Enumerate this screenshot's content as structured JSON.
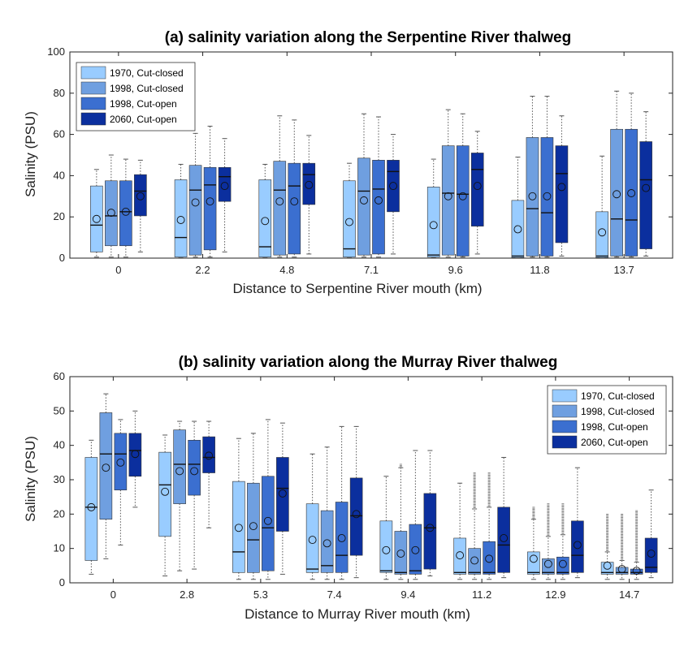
{
  "colors": {
    "1970, Cut-closed": "#99ccff",
    "1998, Cut-closed": "#6f9fe0",
    "1998, Cut-open": "#3b6fd0",
    "2060, Cut-open": "#0b2f9e"
  },
  "chart_data": [
    {
      "type": "box",
      "title": "(a) salinity variation along the Serpentine River thalweg",
      "xlabel": "Distance to Serpentine River mouth (km)",
      "ylabel": "Salinity (PSU)",
      "categories": [
        "0",
        "2.2",
        "4.8",
        "7.1",
        "9.6",
        "11.8",
        "13.7"
      ],
      "ylim": [
        0,
        100
      ],
      "yticks": [
        0,
        20,
        40,
        60,
        80,
        100
      ],
      "legend_position": "top-left",
      "series": [
        {
          "name": "1970, Cut-closed",
          "boxes": [
            {
              "min": 0.5,
              "q1": 3,
              "median": 16,
              "q3": 35,
              "max": 43,
              "mean": 19
            },
            {
              "min": 0.2,
              "q1": 0.5,
              "median": 10,
              "q3": 38,
              "max": 45.5,
              "mean": 18.5
            },
            {
              "min": 0.2,
              "q1": 0.5,
              "median": 5.5,
              "q3": 38,
              "max": 45.5,
              "mean": 18
            },
            {
              "min": 0.2,
              "q1": 0.5,
              "median": 4.5,
              "q3": 37.5,
              "max": 46,
              "mean": 17.5
            },
            {
              "min": 0.2,
              "q1": 0.5,
              "median": 1.5,
              "q3": 34.5,
              "max": 48,
              "mean": 16
            },
            {
              "min": 0.2,
              "q1": 0.3,
              "median": 1,
              "q3": 28,
              "max": 49,
              "mean": 14
            },
            {
              "min": 0.2,
              "q1": 0.3,
              "median": 1,
              "q3": 22.5,
              "max": 49.5,
              "mean": 12.5
            }
          ]
        },
        {
          "name": "1998, Cut-closed",
          "boxes": [
            {
              "min": 0.5,
              "q1": 6,
              "median": 20.5,
              "q3": 37.5,
              "max": 50,
              "mean": 22
            },
            {
              "min": 0.5,
              "q1": 1.5,
              "median": 33,
              "q3": 45,
              "max": 60.5,
              "mean": 27
            },
            {
              "min": 0.5,
              "q1": 1.5,
              "median": 33,
              "q3": 47,
              "max": 69,
              "mean": 27.5
            },
            {
              "min": 0.5,
              "q1": 1.5,
              "median": 32.5,
              "q3": 48.5,
              "max": 70,
              "mean": 28
            },
            {
              "min": 0.5,
              "q1": 1.5,
              "median": 31.5,
              "q3": 54.5,
              "max": 72,
              "mean": 30
            },
            {
              "min": 0.5,
              "q1": 1,
              "median": 24,
              "q3": 58.5,
              "max": 78.5,
              "mean": 30
            },
            {
              "min": 0.5,
              "q1": 1,
              "median": 19,
              "q3": 62.5,
              "max": 81,
              "mean": 31
            }
          ]
        },
        {
          "name": "1998, Cut-open",
          "boxes": [
            {
              "min": 0.5,
              "q1": 6,
              "median": 22.5,
              "q3": 37.5,
              "max": 48,
              "mean": 22.5
            },
            {
              "min": 0.5,
              "q1": 4,
              "median": 35.5,
              "q3": 44,
              "max": 64,
              "mean": 27.5
            },
            {
              "min": 0.5,
              "q1": 2,
              "median": 35,
              "q3": 46,
              "max": 67,
              "mean": 27.5
            },
            {
              "min": 0.5,
              "q1": 2,
              "median": 33.5,
              "q3": 47.5,
              "max": 68.5,
              "mean": 28
            },
            {
              "min": 0.5,
              "q1": 1,
              "median": 31,
              "q3": 54.5,
              "max": 70,
              "mean": 30
            },
            {
              "min": 0.5,
              "q1": 1,
              "median": 22,
              "q3": 58.5,
              "max": 78.5,
              "mean": 30
            },
            {
              "min": 0.5,
              "q1": 1,
              "median": 18.5,
              "q3": 62.5,
              "max": 80,
              "mean": 31.5
            }
          ]
        },
        {
          "name": "2060, Cut-open",
          "boxes": [
            {
              "min": 3,
              "q1": 20.5,
              "median": 32.5,
              "q3": 40.5,
              "max": 47.5,
              "mean": 30
            },
            {
              "min": 3,
              "q1": 27.5,
              "median": 39.5,
              "q3": 44,
              "max": 58,
              "mean": 35
            },
            {
              "min": 2,
              "q1": 26,
              "median": 40.5,
              "q3": 46,
              "max": 59.5,
              "mean": 35.5
            },
            {
              "min": 2,
              "q1": 22.5,
              "median": 42,
              "q3": 47.5,
              "max": 60,
              "mean": 35
            },
            {
              "min": 2,
              "q1": 15.5,
              "median": 43,
              "q3": 51,
              "max": 61.5,
              "mean": 35
            },
            {
              "min": 1,
              "q1": 7.5,
              "median": 41,
              "q3": 54.5,
              "max": 69,
              "mean": 34.5
            },
            {
              "min": 1,
              "q1": 4.5,
              "median": 38,
              "q3": 56.5,
              "max": 71,
              "mean": 34
            }
          ]
        }
      ]
    },
    {
      "type": "box",
      "title": "(b) salinity variation along the Murray River thalweg",
      "xlabel": "Distance to Murray River mouth (km)",
      "ylabel": "Salinity (PSU)",
      "categories": [
        "0",
        "2.8",
        "5.3",
        "7.4",
        "9.4",
        "11.2",
        "12.9",
        "14.7"
      ],
      "ylim": [
        0,
        60
      ],
      "yticks": [
        0,
        10,
        20,
        30,
        40,
        50,
        60
      ],
      "legend_position": "top-right",
      "series": [
        {
          "name": "1970, Cut-closed",
          "boxes": [
            {
              "min": 2.5,
              "q1": 6.5,
              "median": 22,
              "q3": 36.5,
              "max": 41.5,
              "mean": 22
            },
            {
              "min": 2,
              "q1": 13.5,
              "median": 28.5,
              "q3": 38,
              "max": 43,
              "mean": 26.5
            },
            {
              "min": 1,
              "q1": 3,
              "median": 9,
              "q3": 29.5,
              "max": 42,
              "mean": 16
            },
            {
              "min": 1,
              "q1": 3,
              "median": 4,
              "q3": 23,
              "max": 37.5,
              "mean": 12.5
            },
            {
              "min": 1,
              "q1": 3,
              "median": 3.5,
              "q3": 18,
              "max": 31,
              "mean": 9.5
            },
            {
              "min": 1,
              "q1": 2.5,
              "median": 3,
              "q3": 13,
              "max": 29,
              "mean": 8
            },
            {
              "min": 1,
              "q1": 2.5,
              "median": 3,
              "q3": 9,
              "max": 18.5,
              "mean": 7,
              "outlier_range": [
                18.5,
                22
              ]
            },
            {
              "min": 1,
              "q1": 2.5,
              "median": 3,
              "q3": 6,
              "max": 9,
              "mean": 5,
              "outlier_range": [
                9,
                20
              ]
            }
          ]
        },
        {
          "name": "1998, Cut-closed",
          "boxes": [
            {
              "min": 7,
              "q1": 18.5,
              "median": 37.5,
              "q3": 49.5,
              "max": 55,
              "mean": 33.5
            },
            {
              "min": 3.5,
              "q1": 23,
              "median": 34.5,
              "q3": 44.5,
              "max": 47,
              "mean": 32.5
            },
            {
              "min": 1,
              "q1": 3,
              "median": 12.5,
              "q3": 29,
              "max": 43.5,
              "mean": 16.5
            },
            {
              "min": 1,
              "q1": 3,
              "median": 5,
              "q3": 21,
              "max": 39.5,
              "mean": 11.5
            },
            {
              "min": 1,
              "q1": 2.5,
              "median": 3,
              "q3": 15,
              "max": 33.5,
              "mean": 8.5,
              "outlier_range": [
                33.5,
                34.5
              ]
            },
            {
              "min": 1,
              "q1": 2.5,
              "median": 3,
              "q3": 10,
              "max": 21.5,
              "mean": 6.5,
              "outlier_range": [
                21.5,
                32
              ]
            },
            {
              "min": 1,
              "q1": 2.5,
              "median": 3,
              "q3": 7,
              "max": 13.5,
              "mean": 5.5,
              "outlier_range": [
                13.5,
                23
              ]
            },
            {
              "min": 1,
              "q1": 2.5,
              "median": 3,
              "q3": 4.5,
              "max": 6.5,
              "mean": 4,
              "outlier_range": [
                6.5,
                20
              ]
            }
          ]
        },
        {
          "name": "1998, Cut-open",
          "boxes": [
            {
              "min": 11,
              "q1": 27,
              "median": 37.5,
              "q3": 43.5,
              "max": 47.5,
              "mean": 35
            },
            {
              "min": 4,
              "q1": 25.5,
              "median": 34.5,
              "q3": 41.5,
              "max": 47,
              "mean": 32.5
            },
            {
              "min": 1,
              "q1": 3.5,
              "median": 16,
              "q3": 31,
              "max": 47.5,
              "mean": 18
            },
            {
              "min": 1,
              "q1": 3,
              "median": 8,
              "q3": 23.5,
              "max": 45.5,
              "mean": 13
            },
            {
              "min": 1,
              "q1": 2.5,
              "median": 3.5,
              "q3": 17,
              "max": 38.5,
              "mean": 9.5
            },
            {
              "min": 1,
              "q1": 2.5,
              "median": 3,
              "q3": 12,
              "max": 22,
              "mean": 7,
              "outlier_range": [
                22,
                32
              ]
            },
            {
              "min": 1,
              "q1": 2.5,
              "median": 3,
              "q3": 7.5,
              "max": 14,
              "mean": 5.5,
              "outlier_range": [
                14,
                23
              ]
            },
            {
              "min": 1,
              "q1": 2.5,
              "median": 3,
              "q3": 4,
              "max": 6,
              "mean": 3.5,
              "outlier_range": [
                6,
                21
              ]
            }
          ]
        },
        {
          "name": "2060, Cut-open",
          "boxes": [
            {
              "min": 22,
              "q1": 31,
              "median": 38.5,
              "q3": 43.5,
              "max": 50,
              "mean": 37.5
            },
            {
              "min": 16,
              "q1": 32,
              "median": 36.5,
              "q3": 42.5,
              "max": 47,
              "mean": 37
            },
            {
              "min": 2.5,
              "q1": 15,
              "median": 27.5,
              "q3": 36.5,
              "max": 46.5,
              "mean": 26
            },
            {
              "min": 1.5,
              "q1": 8,
              "median": 19.5,
              "q3": 30.5,
              "max": 45.5,
              "mean": 20
            },
            {
              "min": 2,
              "q1": 4,
              "median": 16,
              "q3": 26,
              "max": 38.5,
              "mean": 16
            },
            {
              "min": 1.5,
              "q1": 3,
              "median": 11,
              "q3": 22,
              "max": 36.5,
              "mean": 13
            },
            {
              "min": 1.5,
              "q1": 3,
              "median": 8,
              "q3": 18,
              "max": 33.5,
              "mean": 11
            },
            {
              "min": 1.5,
              "q1": 3,
              "median": 4.5,
              "q3": 13,
              "max": 27,
              "mean": 8.5
            }
          ]
        }
      ]
    }
  ]
}
